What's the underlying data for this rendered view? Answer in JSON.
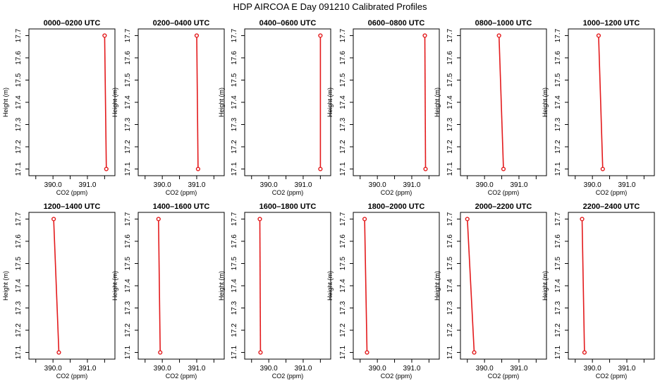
{
  "figure": {
    "title": "HDP AIRCOA E  Day 091210  Calibrated Profiles"
  },
  "chart_data": [
    {
      "type": "line",
      "title": "0000–0200 UTC",
      "xlabel": "CO2 (ppm)",
      "ylabel": "Height (m)",
      "xlim": [
        389.3,
        391.8
      ],
      "ylim": [
        17.07,
        17.73
      ],
      "xticks": [
        "390.0",
        "391.0"
      ],
      "xtick_values": [
        390.0,
        391.0
      ],
      "yticks": [
        "17.1",
        "17.2",
        "17.3",
        "17.4",
        "17.5",
        "17.6",
        "17.7"
      ],
      "ytick_values": [
        17.1,
        17.2,
        17.3,
        17.4,
        17.5,
        17.6,
        17.7
      ],
      "series": [
        {
          "x": [
            391.5,
            391.55
          ],
          "y": [
            17.7,
            17.1
          ]
        }
      ]
    },
    {
      "type": "line",
      "title": "0200–0400 UTC",
      "xlabel": "CO2 (ppm)",
      "ylabel": "Height (m)",
      "xlim": [
        389.3,
        391.8
      ],
      "ylim": [
        17.07,
        17.73
      ],
      "xticks": [
        "390.0",
        "391.0"
      ],
      "xtick_values": [
        390.0,
        391.0
      ],
      "yticks": [
        "17.1",
        "17.2",
        "17.3",
        "17.4",
        "17.5",
        "17.6",
        "17.7"
      ],
      "ytick_values": [
        17.1,
        17.2,
        17.3,
        17.4,
        17.5,
        17.6,
        17.7
      ],
      "series": [
        {
          "x": [
            391.0,
            391.04
          ],
          "y": [
            17.7,
            17.1
          ]
        }
      ]
    },
    {
      "type": "line",
      "title": "0400–0600 UTC",
      "xlabel": "CO2 (ppm)",
      "ylabel": "Height (m)",
      "xlim": [
        389.3,
        391.8
      ],
      "ylim": [
        17.07,
        17.73
      ],
      "xticks": [
        "390.0",
        "391.0"
      ],
      "xtick_values": [
        390.0,
        391.0
      ],
      "yticks": [
        "17.1",
        "17.2",
        "17.3",
        "17.4",
        "17.5",
        "17.6",
        "17.7"
      ],
      "ytick_values": [
        17.1,
        17.2,
        17.3,
        17.4,
        17.5,
        17.6,
        17.7
      ],
      "series": [
        {
          "x": [
            391.5,
            391.5
          ],
          "y": [
            17.7,
            17.1
          ]
        }
      ]
    },
    {
      "type": "line",
      "title": "0600–0800 UTC",
      "xlabel": "CO2 (ppm)",
      "ylabel": "Height (m)",
      "xlim": [
        389.3,
        391.8
      ],
      "ylim": [
        17.07,
        17.73
      ],
      "xticks": [
        "390.0",
        "391.0"
      ],
      "xtick_values": [
        390.0,
        391.0
      ],
      "yticks": [
        "17.1",
        "17.2",
        "17.3",
        "17.4",
        "17.5",
        "17.6",
        "17.7"
      ],
      "ytick_values": [
        17.1,
        17.2,
        17.3,
        17.4,
        17.5,
        17.6,
        17.7
      ],
      "series": [
        {
          "x": [
            391.38,
            391.4
          ],
          "y": [
            17.7,
            17.1
          ]
        }
      ]
    },
    {
      "type": "line",
      "title": "0800–1000 UTC",
      "xlabel": "CO2 (ppm)",
      "ylabel": "Height (m)",
      "xlim": [
        389.3,
        391.8
      ],
      "ylim": [
        17.07,
        17.73
      ],
      "xticks": [
        "390.0",
        "391.0"
      ],
      "xtick_values": [
        390.0,
        391.0
      ],
      "yticks": [
        "17.1",
        "17.2",
        "17.3",
        "17.4",
        "17.5",
        "17.6",
        "17.7"
      ],
      "ytick_values": [
        17.1,
        17.2,
        17.3,
        17.4,
        17.5,
        17.6,
        17.7
      ],
      "series": [
        {
          "x": [
            390.42,
            390.55
          ],
          "y": [
            17.7,
            17.1
          ]
        }
      ]
    },
    {
      "type": "line",
      "title": "1000–1200 UTC",
      "xlabel": "CO2 (ppm)",
      "ylabel": "Height (m)",
      "xlim": [
        389.3,
        391.8
      ],
      "ylim": [
        17.07,
        17.73
      ],
      "xticks": [
        "390.0",
        "391.0"
      ],
      "xtick_values": [
        390.0,
        391.0
      ],
      "yticks": [
        "17.1",
        "17.2",
        "17.3",
        "17.4",
        "17.5",
        "17.6",
        "17.7"
      ],
      "ytick_values": [
        17.1,
        17.2,
        17.3,
        17.4,
        17.5,
        17.6,
        17.7
      ],
      "series": [
        {
          "x": [
            390.18,
            390.3
          ],
          "y": [
            17.7,
            17.1
          ]
        }
      ]
    },
    {
      "type": "line",
      "title": "1200–1400 UTC",
      "xlabel": "CO2 (ppm)",
      "ylabel": "Height (m)",
      "xlim": [
        389.3,
        391.8
      ],
      "ylim": [
        17.07,
        17.73
      ],
      "xticks": [
        "390.0",
        "391.0"
      ],
      "xtick_values": [
        390.0,
        391.0
      ],
      "yticks": [
        "17.1",
        "17.2",
        "17.3",
        "17.4",
        "17.5",
        "17.6",
        "17.7"
      ],
      "ytick_values": [
        17.1,
        17.2,
        17.3,
        17.4,
        17.5,
        17.6,
        17.7
      ],
      "series": [
        {
          "x": [
            390.02,
            390.17
          ],
          "y": [
            17.7,
            17.1
          ]
        }
      ]
    },
    {
      "type": "line",
      "title": "1400–1600 UTC",
      "xlabel": "CO2 (ppm)",
      "ylabel": "Height (m)",
      "xlim": [
        389.3,
        391.8
      ],
      "ylim": [
        17.07,
        17.73
      ],
      "xticks": [
        "390.0",
        "391.0"
      ],
      "xtick_values": [
        390.0,
        391.0
      ],
      "yticks": [
        "17.1",
        "17.2",
        "17.3",
        "17.4",
        "17.5",
        "17.6",
        "17.7"
      ],
      "ytick_values": [
        17.1,
        17.2,
        17.3,
        17.4,
        17.5,
        17.6,
        17.7
      ],
      "series": [
        {
          "x": [
            389.89,
            389.94
          ],
          "y": [
            17.7,
            17.1
          ]
        }
      ]
    },
    {
      "type": "line",
      "title": "1600–1800 UTC",
      "xlabel": "CO2 (ppm)",
      "ylabel": "Height (m)",
      "xlim": [
        389.3,
        391.8
      ],
      "ylim": [
        17.07,
        17.73
      ],
      "xticks": [
        "390.0",
        "391.0"
      ],
      "xtick_values": [
        390.0,
        391.0
      ],
      "yticks": [
        "17.1",
        "17.2",
        "17.3",
        "17.4",
        "17.5",
        "17.6",
        "17.7"
      ],
      "ytick_values": [
        17.1,
        17.2,
        17.3,
        17.4,
        17.5,
        17.6,
        17.7
      ],
      "series": [
        {
          "x": [
            389.74,
            389.76
          ],
          "y": [
            17.7,
            17.1
          ]
        }
      ]
    },
    {
      "type": "line",
      "title": "1800–2000 UTC",
      "xlabel": "CO2 (ppm)",
      "ylabel": "Height (m)",
      "xlim": [
        389.3,
        391.8
      ],
      "ylim": [
        17.07,
        17.73
      ],
      "xticks": [
        "390.0",
        "391.0"
      ],
      "xtick_values": [
        390.0,
        391.0
      ],
      "yticks": [
        "17.1",
        "17.2",
        "17.3",
        "17.4",
        "17.5",
        "17.6",
        "17.7"
      ],
      "ytick_values": [
        17.1,
        17.2,
        17.3,
        17.4,
        17.5,
        17.6,
        17.7
      ],
      "series": [
        {
          "x": [
            389.63,
            389.7
          ],
          "y": [
            17.7,
            17.1
          ]
        }
      ]
    },
    {
      "type": "line",
      "title": "2000–2200 UTC",
      "xlabel": "CO2 (ppm)",
      "ylabel": "Height (m)",
      "xlim": [
        389.3,
        391.8
      ],
      "ylim": [
        17.07,
        17.73
      ],
      "xticks": [
        "390.0",
        "391.0"
      ],
      "xtick_values": [
        390.0,
        391.0
      ],
      "yticks": [
        "17.1",
        "17.2",
        "17.3",
        "17.4",
        "17.5",
        "17.6",
        "17.7"
      ],
      "ytick_values": [
        17.1,
        17.2,
        17.3,
        17.4,
        17.5,
        17.6,
        17.7
      ],
      "series": [
        {
          "x": [
            389.5,
            389.7
          ],
          "y": [
            17.7,
            17.1
          ]
        }
      ]
    },
    {
      "type": "line",
      "title": "2200–2400 UTC",
      "xlabel": "CO2 (ppm)",
      "ylabel": "Height (m)",
      "xlim": [
        389.3,
        391.8
      ],
      "ylim": [
        17.07,
        17.73
      ],
      "xticks": [
        "390.0",
        "391.0"
      ],
      "xtick_values": [
        390.0,
        391.0
      ],
      "yticks": [
        "17.1",
        "17.2",
        "17.3",
        "17.4",
        "17.5",
        "17.6",
        "17.7"
      ],
      "ytick_values": [
        17.1,
        17.2,
        17.3,
        17.4,
        17.5,
        17.6,
        17.7
      ],
      "series": [
        {
          "x": [
            389.7,
            389.77
          ],
          "y": [
            17.7,
            17.1
          ]
        }
      ]
    }
  ],
  "colors": {
    "series_line": "#e31a1c",
    "axes": "#000000"
  }
}
